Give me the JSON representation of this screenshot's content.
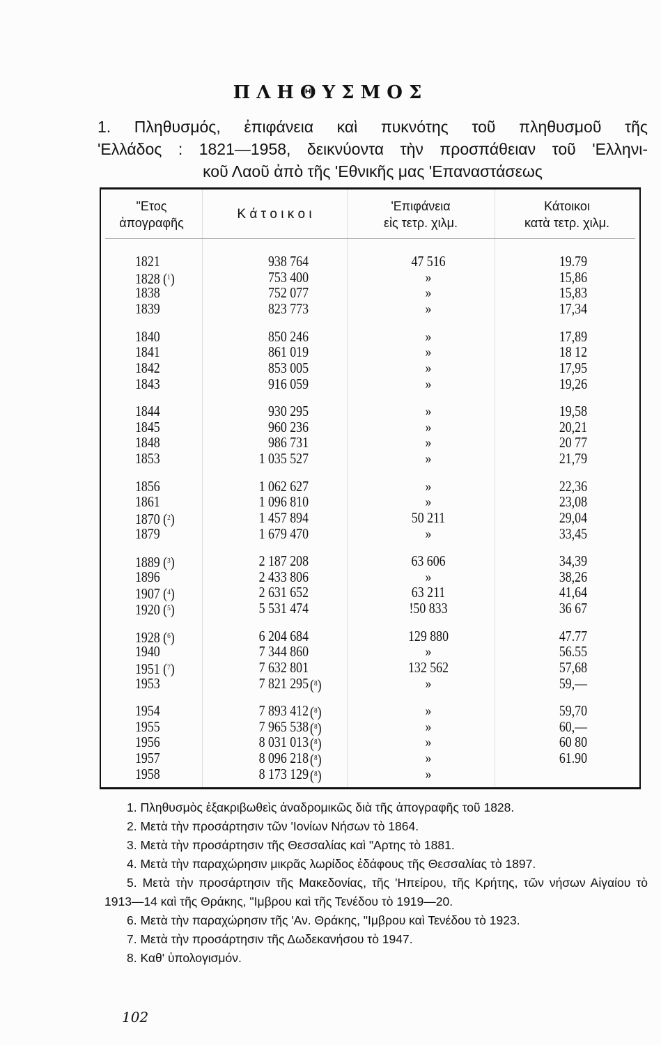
{
  "title": "ΠΛΗΘΥΣΜΟΣ",
  "subtitle_lines": [
    "1. Πληθυσμός, ἐπιφάνεια καὶ πυκνότης τοῦ πληθυσμοῦ τῆς",
    "'Ελλάδος : 1821—1958, δεικνύοντα τὴν προσπάθειαν τοῦ 'Ελληνι-",
    "κοῦ Λαοῦ ἀπὸ τῆς 'Εθνικῆς μας 'Επαναστάσεως"
  ],
  "table": {
    "headers": {
      "year": [
        "\"Ετος",
        "ἀπογραφῆς"
      ],
      "population": [
        "Κ ά τ ο ι κ ο ι"
      ],
      "area": [
        "'Επιφάνεια",
        "εἰς τετρ. χιλμ."
      ],
      "density": [
        "Κάτοικοι",
        "κατὰ  τετρ. χιλμ."
      ]
    },
    "rows": [
      {
        "year": "1821",
        "note": "",
        "pop": "938 764",
        "pnote": "",
        "area": "47 516",
        "dens": "19.79"
      },
      {
        "year": "1828",
        "note": "1",
        "pop": "753 400",
        "pnote": "",
        "area": "»",
        "dens": "15,86"
      },
      {
        "year": "1838",
        "note": "",
        "pop": "752 077",
        "pnote": "",
        "area": "»",
        "dens": "15,83"
      },
      {
        "year": "1839",
        "note": "",
        "pop": "823 773",
        "pnote": "",
        "area": "»",
        "dens": "17,34"
      },
      {
        "year": "1840",
        "note": "",
        "pop": "850 246",
        "pnote": "",
        "area": "»",
        "dens": "17,89"
      },
      {
        "year": "1841",
        "note": "",
        "pop": "861 019",
        "pnote": "",
        "area": "»",
        "dens": "18 12"
      },
      {
        "year": "1842",
        "note": "",
        "pop": "853 005",
        "pnote": "",
        "area": "»",
        "dens": "17,95"
      },
      {
        "year": "1843",
        "note": "",
        "pop": "916 059",
        "pnote": "",
        "area": "»",
        "dens": "19,26"
      },
      {
        "year": "1844",
        "note": "",
        "pop": "930 295",
        "pnote": "",
        "area": "»",
        "dens": "19,58"
      },
      {
        "year": "1845",
        "note": "",
        "pop": "960 236",
        "pnote": "",
        "area": "»",
        "dens": "20,21"
      },
      {
        "year": "1848",
        "note": "",
        "pop": "986 731",
        "pnote": "",
        "area": "»",
        "dens": "20 77"
      },
      {
        "year": "1853",
        "note": "",
        "pop": "1 035 527",
        "pnote": "",
        "area": "»",
        "dens": "21,79"
      },
      {
        "year": "1856",
        "note": "",
        "pop": "1 062 627",
        "pnote": "",
        "area": "»",
        "dens": "22,36"
      },
      {
        "year": "1861",
        "note": "",
        "pop": "1 096 810",
        "pnote": "",
        "area": "»",
        "dens": "23,08"
      },
      {
        "year": "1870",
        "note": "2",
        "pop": "1 457 894",
        "pnote": "",
        "area": "50 211",
        "dens": "29,04"
      },
      {
        "year": "1879",
        "note": "",
        "pop": "1 679 470",
        "pnote": "",
        "area": "»",
        "dens": "33,45"
      },
      {
        "year": "1889",
        "note": "3",
        "pop": "2 187 208",
        "pnote": "",
        "area": "63 606",
        "dens": "34,39"
      },
      {
        "year": "1896",
        "note": "",
        "pop": "2 433 806",
        "pnote": "",
        "area": "»",
        "dens": "38,26"
      },
      {
        "year": "1907",
        "note": "4",
        "pop": "2 631 652",
        "pnote": "",
        "area": "63 211",
        "dens": "41,64"
      },
      {
        "year": "1920",
        "note": "5",
        "pop": "5 531 474",
        "pnote": "",
        "area": "!50 833",
        "dens": "36 67"
      },
      {
        "year": "1928",
        "note": "6",
        "pop": "6 204 684",
        "pnote": "",
        "area": "129 880",
        "dens": "47.77"
      },
      {
        "year": "1940",
        "note": "",
        "pop": "7 344 860",
        "pnote": "",
        "area": "»",
        "dens": "56.55"
      },
      {
        "year": "1951",
        "note": "7",
        "pop": "7 632 801",
        "pnote": "",
        "area": "132 562",
        "dens": "57,68"
      },
      {
        "year": "1953",
        "note": "",
        "pop": "7 821 295",
        "pnote": "8",
        "area": "»",
        "dens": "59,—"
      },
      {
        "year": "1954",
        "note": "",
        "pop": "7 893 412",
        "pnote": "8",
        "area": "»",
        "dens": "59,70"
      },
      {
        "year": "1955",
        "note": "",
        "pop": "7 965 538",
        "pnote": "8",
        "area": "»",
        "dens": "60,—"
      },
      {
        "year": "1956",
        "note": "",
        "pop": "8 031 013",
        "pnote": "8",
        "area": "»",
        "dens": "60 80"
      },
      {
        "year": "1957",
        "note": "",
        "pop": "8 096 218",
        "pnote": "8",
        "area": "»",
        "dens": "61.90"
      },
      {
        "year": "1958",
        "note": "",
        "pop": "8 173 129",
        "pnote": "8",
        "area": "»",
        "dens": ""
      }
    ]
  },
  "footnotes": [
    "1. Πληθυσμὸς ἐξακριβωθεὶς ἀναδρομικῶς διὰ  τῆς ἀπογραφῆς τοῦ 1828.",
    "2. Μετὰ τὴν προσάρτησιν τῶν 'Ιονίων Νήσων τὸ 1864.",
    "3. Μετὰ τὴν προσάρτησιν τῆς Θεσσαλίας καὶ \"Αρτης τὸ 1881.",
    "4. Μετὰ τὴν παραχώρησιν μικρᾶς λωρίδος ἐδάφους τῆς Θεσσαλίας τὸ 1897.",
    "5. Μετὰ τὴν προσάρτησιν τῆς Μακεδονίας, τῆς 'Ηπείρου, τῆς Κρήτης, τῶν νήσων Αἰγαίου τὸ 1913—14 καὶ τῆς Θράκης, \"Ιμβρου καὶ τῆς Τενέδου τὸ 1919—20.",
    "6. Μετὰ τὴν παραχώρησιν τῆς 'Αν. Θράκης, \"Ιμβρου καὶ Τενέδου τὸ 1923.",
    "7. Μετὰ τὴν προσάρτησιν τῆς Δωδεκανήσου τὸ 1947.",
    "8. Καθ' ὑπολογισμόν."
  ],
  "page_number": "102"
}
